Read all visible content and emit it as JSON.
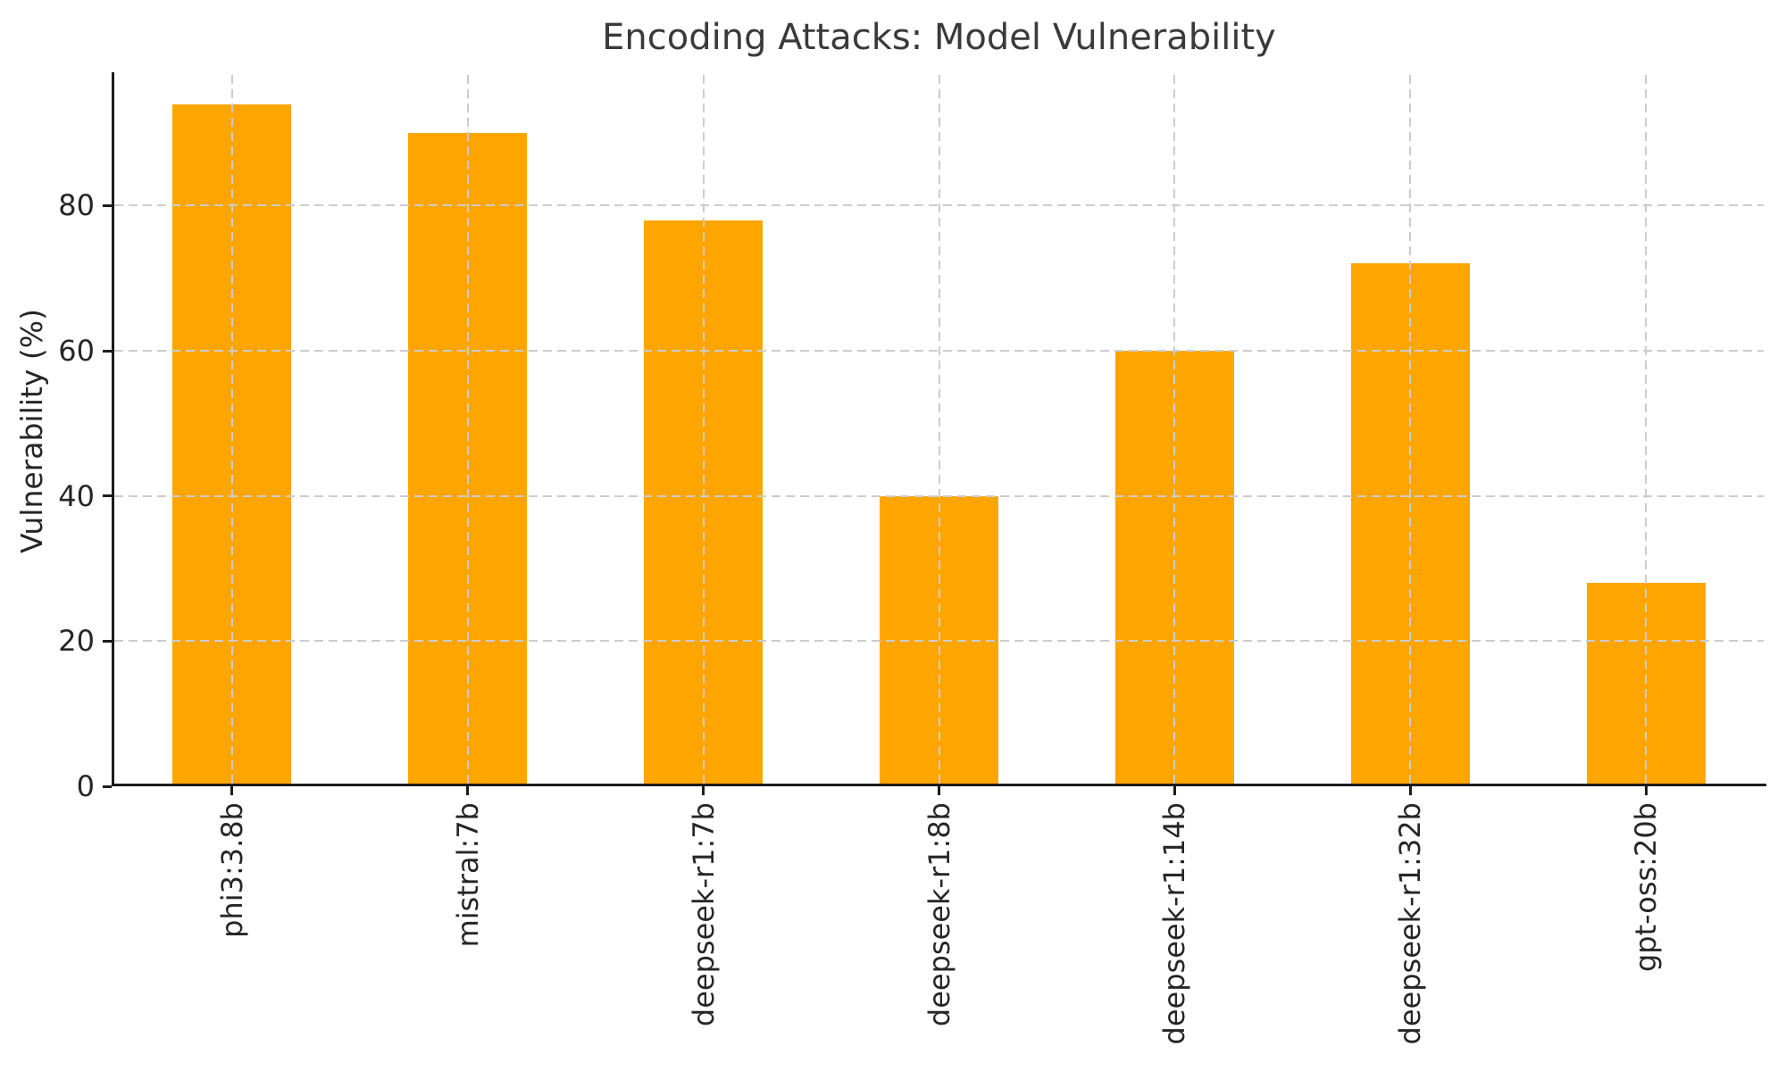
{
  "chart_data": {
    "type": "bar",
    "title": "Encoding Attacks: Model Vulnerability",
    "xlabel": "",
    "ylabel": "Vulnerability (%)",
    "categories": [
      "phi3:3.8b",
      "mistral:7b",
      "deepseek-r1:7b",
      "deepseek-r1:8b",
      "deepseek-r1:14b",
      "deepseek-r1:32b",
      "gpt-oss:20b"
    ],
    "values": [
      94,
      90,
      78,
      40,
      60,
      72,
      28
    ],
    "ylim": [
      0,
      98
    ],
    "yticks": [
      0,
      20,
      40,
      60,
      80
    ],
    "bar_color": "#FFA500",
    "grid": "dashed gray, horizontal at yticks and vertical at each category center, drawn above bars",
    "grid_color": "#cccccc",
    "axis_color": "#1c1c1c",
    "text_color": "#262626",
    "title_color": "#3a3a3a",
    "background": "#ffffff",
    "legend": "none",
    "x_tick_label_rotation_deg": 90
  }
}
